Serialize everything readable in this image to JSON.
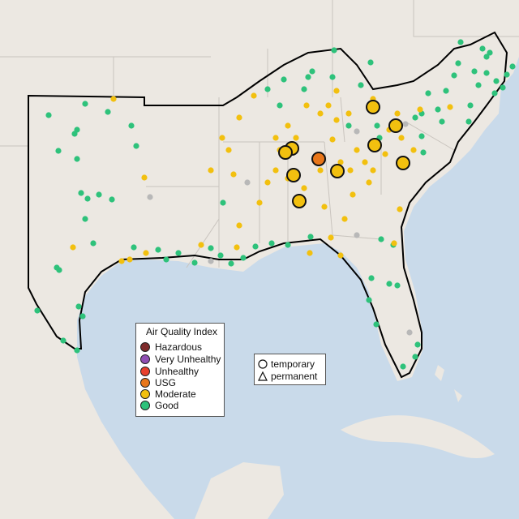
{
  "legend": {
    "title": "Air Quality Index",
    "categories": [
      {
        "label": "Hazardous",
        "color": "#7e2a2a"
      },
      {
        "label": "Very Unhealthy",
        "color": "#8f4fb3"
      },
      {
        "label": "Unhealthy",
        "color": "#e8402c"
      },
      {
        "label": "USG",
        "color": "#e8761a"
      },
      {
        "label": "Moderate",
        "color": "#f2c00f"
      },
      {
        "label": "Good",
        "color": "#2ec27b"
      }
    ]
  },
  "shape_legend": {
    "temporary_label": "temporary",
    "temporary_icon": "circle-icon",
    "permanent_label": "permanent",
    "permanent_icon": "triangle-icon"
  },
  "colors": {
    "water": "#c9daea",
    "land": "#ece8e2",
    "region_outline": "#000000",
    "no_data": "#b8b8b8"
  }
}
